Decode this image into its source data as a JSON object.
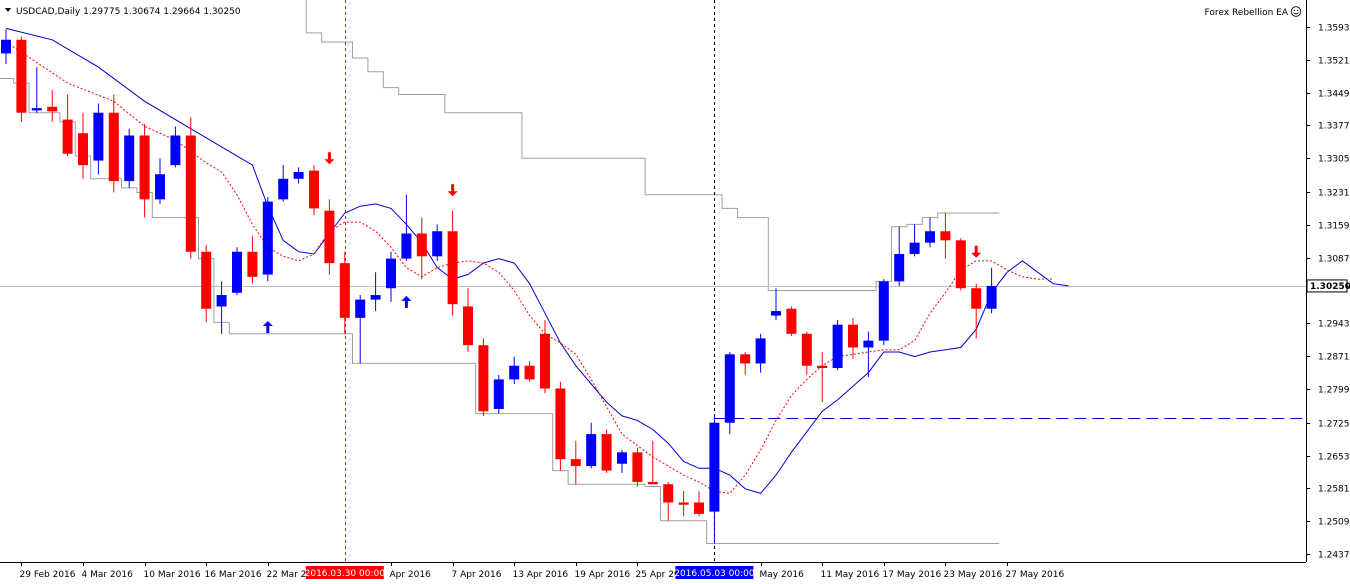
{
  "header": {
    "symbol": "USDCAD,Daily",
    "open": "1.29775",
    "high": "1.30674",
    "low": "1.29664",
    "close": "1.30250",
    "indicator_name": "Forex Rebellion EA",
    "indicator_icon": "smiley-icon"
  },
  "colors": {
    "bull": "#0000ff",
    "bear": "#ff0000",
    "ma_blue": "#0000cc",
    "ma_red": "#ff0000",
    "channel": "#a0a0a0",
    "price_line": "#c0c0c0",
    "level_line": "#0000cc",
    "axis": "#000000",
    "vline_red": "#ff0000",
    "vline_black": "#000000",
    "tag_red": "#ff0000",
    "tag_blue": "#0000ff"
  },
  "chart_data": {
    "type": "candlestick",
    "y_ticks": [
      "1.35930",
      "1.35210",
      "1.34490",
      "1.33770",
      "1.33050",
      "1.32310",
      "1.31590",
      "1.30870",
      "1.30250",
      "1.29430",
      "1.28710",
      "1.27990",
      "1.27250",
      "1.26530",
      "1.25810",
      "1.25090",
      "1.24370"
    ],
    "ylim": [
      1.2415,
      1.3655
    ],
    "current_price": 1.3025,
    "current_price_label": "1.30250",
    "x_ticks": [
      {
        "label": "29 Feb 2016",
        "bar": 1
      },
      {
        "label": "4 Mar 2016",
        "bar": 5
      },
      {
        "label": "10 Mar 2016",
        "bar": 9
      },
      {
        "label": "16 Mar 2016",
        "bar": 13
      },
      {
        "label": "22 Mar 2016",
        "bar": 17
      },
      {
        "label": "Apr 2016",
        "bar": 25
      },
      {
        "label": "7 Apr 2016",
        "bar": 29
      },
      {
        "label": "13 Apr 2016",
        "bar": 33
      },
      {
        "label": "19 Apr 2016",
        "bar": 37
      },
      {
        "label": "25 Apr 2016",
        "bar": 41
      },
      {
        "label": "May 2016",
        "bar": 49
      },
      {
        "label": "11 May 2016",
        "bar": 53
      },
      {
        "label": "17 May 2016",
        "bar": 57
      },
      {
        "label": "23 May 2016",
        "bar": 61
      },
      {
        "label": "27 May 2016",
        "bar": 65
      }
    ],
    "date_tags": [
      {
        "label": "2016.03.30 00:00",
        "bar": 22,
        "color": "red"
      },
      {
        "label": "2016.05.03 00:00",
        "bar": 46,
        "color": "blue"
      }
    ],
    "candles": [
      {
        "o": 1.3535,
        "h": 1.3588,
        "l": 1.3512,
        "c": 1.3565
      },
      {
        "o": 1.3565,
        "h": 1.3572,
        "l": 1.3385,
        "c": 1.3405
      },
      {
        "o": 1.341,
        "h": 1.3505,
        "l": 1.3405,
        "c": 1.3415
      },
      {
        "o": 1.3418,
        "h": 1.3455,
        "l": 1.3385,
        "c": 1.3408
      },
      {
        "o": 1.339,
        "h": 1.3445,
        "l": 1.331,
        "c": 1.3315
      },
      {
        "o": 1.336,
        "h": 1.3405,
        "l": 1.326,
        "c": 1.329
      },
      {
        "o": 1.33,
        "h": 1.3425,
        "l": 1.327,
        "c": 1.3405
      },
      {
        "o": 1.3405,
        "h": 1.3445,
        "l": 1.323,
        "c": 1.3255
      },
      {
        "o": 1.3255,
        "h": 1.337,
        "l": 1.324,
        "c": 1.3355
      },
      {
        "o": 1.3355,
        "h": 1.338,
        "l": 1.3175,
        "c": 1.3215
      },
      {
        "o": 1.3215,
        "h": 1.3305,
        "l": 1.3205,
        "c": 1.327
      },
      {
        "o": 1.329,
        "h": 1.3375,
        "l": 1.3285,
        "c": 1.3355
      },
      {
        "o": 1.3355,
        "h": 1.3395,
        "l": 1.3085,
        "c": 1.31
      },
      {
        "o": 1.31,
        "h": 1.3115,
        "l": 1.2945,
        "c": 1.2975
      },
      {
        "o": 1.298,
        "h": 1.3035,
        "l": 1.292,
        "c": 1.3005
      },
      {
        "o": 1.301,
        "h": 1.311,
        "l": 1.3005,
        "c": 1.31
      },
      {
        "o": 1.31,
        "h": 1.3135,
        "l": 1.303,
        "c": 1.3045
      },
      {
        "o": 1.305,
        "h": 1.322,
        "l": 1.3035,
        "c": 1.321
      },
      {
        "o": 1.3215,
        "h": 1.329,
        "l": 1.321,
        "c": 1.326
      },
      {
        "o": 1.326,
        "h": 1.3285,
        "l": 1.325,
        "c": 1.3275
      },
      {
        "o": 1.3278,
        "h": 1.329,
        "l": 1.318,
        "c": 1.3195
      },
      {
        "o": 1.319,
        "h": 1.3215,
        "l": 1.305,
        "c": 1.3075
      },
      {
        "o": 1.3075,
        "h": 1.31,
        "l": 1.292,
        "c": 1.2955
      },
      {
        "o": 1.2955,
        "h": 1.3005,
        "l": 1.2855,
        "c": 1.2995
      },
      {
        "o": 1.2995,
        "h": 1.3055,
        "l": 1.297,
        "c": 1.3005
      },
      {
        "o": 1.302,
        "h": 1.31,
        "l": 1.299,
        "c": 1.3085
      },
      {
        "o": 1.3085,
        "h": 1.3225,
        "l": 1.308,
        "c": 1.314
      },
      {
        "o": 1.314,
        "h": 1.3175,
        "l": 1.304,
        "c": 1.309
      },
      {
        "o": 1.309,
        "h": 1.316,
        "l": 1.308,
        "c": 1.3145
      },
      {
        "o": 1.3145,
        "h": 1.319,
        "l": 1.296,
        "c": 1.2985
      },
      {
        "o": 1.298,
        "h": 1.302,
        "l": 1.288,
        "c": 1.2895
      },
      {
        "o": 1.2895,
        "h": 1.291,
        "l": 1.274,
        "c": 1.275
      },
      {
        "o": 1.2755,
        "h": 1.283,
        "l": 1.2745,
        "c": 1.282
      },
      {
        "o": 1.282,
        "h": 1.287,
        "l": 1.281,
        "c": 1.285
      },
      {
        "o": 1.285,
        "h": 1.286,
        "l": 1.2815,
        "c": 1.282
      },
      {
        "o": 1.292,
        "h": 1.295,
        "l": 1.279,
        "c": 1.28
      },
      {
        "o": 1.28,
        "h": 1.2815,
        "l": 1.262,
        "c": 1.2645
      },
      {
        "o": 1.2645,
        "h": 1.2685,
        "l": 1.259,
        "c": 1.263
      },
      {
        "o": 1.263,
        "h": 1.2725,
        "l": 1.2625,
        "c": 1.27
      },
      {
        "o": 1.27,
        "h": 1.271,
        "l": 1.2615,
        "c": 1.262
      },
      {
        "o": 1.2635,
        "h": 1.2665,
        "l": 1.2615,
        "c": 1.266
      },
      {
        "o": 1.266,
        "h": 1.267,
        "l": 1.2585,
        "c": 1.2595
      },
      {
        "o": 1.2595,
        "h": 1.2685,
        "l": 1.259,
        "c": 1.259
      },
      {
        "o": 1.259,
        "h": 1.2595,
        "l": 1.251,
        "c": 1.255
      },
      {
        "o": 1.255,
        "h": 1.2575,
        "l": 1.252,
        "c": 1.2545
      },
      {
        "o": 1.255,
        "h": 1.2575,
        "l": 1.252,
        "c": 1.2525
      },
      {
        "o": 1.253,
        "h": 1.274,
        "l": 1.246,
        "c": 1.2725
      },
      {
        "o": 1.2725,
        "h": 1.288,
        "l": 1.27,
        "c": 1.2875
      },
      {
        "o": 1.2875,
        "h": 1.288,
        "l": 1.283,
        "c": 1.2855
      },
      {
        "o": 1.2855,
        "h": 1.292,
        "l": 1.2835,
        "c": 1.291
      },
      {
        "o": 1.296,
        "h": 1.302,
        "l": 1.295,
        "c": 1.297
      },
      {
        "o": 1.2975,
        "h": 1.298,
        "l": 1.2915,
        "c": 1.292
      },
      {
        "o": 1.292,
        "h": 1.2925,
        "l": 1.283,
        "c": 1.285
      },
      {
        "o": 1.285,
        "h": 1.288,
        "l": 1.277,
        "c": 1.2845
      },
      {
        "o": 1.2845,
        "h": 1.295,
        "l": 1.284,
        "c": 1.294
      },
      {
        "o": 1.294,
        "h": 1.2955,
        "l": 1.2865,
        "c": 1.289
      },
      {
        "o": 1.289,
        "h": 1.2925,
        "l": 1.2825,
        "c": 1.2905
      },
      {
        "o": 1.2905,
        "h": 1.304,
        "l": 1.2895,
        "c": 1.3035
      },
      {
        "o": 1.3035,
        "h": 1.3155,
        "l": 1.3025,
        "c": 1.3095
      },
      {
        "o": 1.3095,
        "h": 1.316,
        "l": 1.309,
        "c": 1.312
      },
      {
        "o": 1.312,
        "h": 1.3175,
        "l": 1.311,
        "c": 1.3145
      },
      {
        "o": 1.3145,
        "h": 1.3185,
        "l": 1.3085,
        "c": 1.3125
      },
      {
        "o": 1.3125,
        "h": 1.313,
        "l": 1.3015,
        "c": 1.302
      },
      {
        "o": 1.302,
        "h": 1.303,
        "l": 1.291,
        "c": 1.2975
      },
      {
        "o": 1.2975,
        "h": 1.3065,
        "l": 1.2965,
        "c": 1.3025
      }
    ],
    "ma_blue": [
      [
        0,
        1.359
      ],
      [
        3,
        1.3565
      ],
      [
        6,
        1.3505
      ],
      [
        9,
        1.343
      ],
      [
        12,
        1.337
      ],
      [
        14,
        1.333
      ],
      [
        16,
        1.329
      ],
      [
        17,
        1.32
      ],
      [
        18,
        1.3125
      ],
      [
        19,
        1.31
      ],
      [
        20,
        1.3095
      ],
      [
        21,
        1.314
      ],
      [
        22,
        1.3185
      ],
      [
        23,
        1.32
      ],
      [
        24,
        1.3205
      ],
      [
        25,
        1.3195
      ],
      [
        26,
        1.316
      ],
      [
        27,
        1.312
      ],
      [
        28,
        1.3065
      ],
      [
        29,
        1.304
      ],
      [
        30,
        1.305
      ],
      [
        31,
        1.3075
      ],
      [
        32,
        1.3085
      ],
      [
        33,
        1.3075
      ],
      [
        34,
        1.303
      ],
      [
        35,
        1.2965
      ],
      [
        36,
        1.29
      ],
      [
        37,
        1.285
      ],
      [
        38,
        1.281
      ],
      [
        39,
        1.277
      ],
      [
        40,
        1.274
      ],
      [
        41,
        1.273
      ],
      [
        42,
        1.271
      ],
      [
        43,
        1.268
      ],
      [
        44,
        1.264
      ],
      [
        45,
        1.2625
      ],
      [
        46,
        1.2625
      ],
      [
        47,
        1.261
      ],
      [
        48,
        1.258
      ],
      [
        49,
        1.257
      ],
      [
        50,
        1.261
      ],
      [
        51,
        1.266
      ],
      [
        52,
        1.2705
      ],
      [
        53,
        1.275
      ],
      [
        54,
        1.2775
      ],
      [
        55,
        1.2805
      ],
      [
        56,
        1.2835
      ],
      [
        57,
        1.288
      ],
      [
        58,
        1.288
      ],
      [
        59,
        1.287
      ],
      [
        60,
        1.288
      ],
      [
        61,
        1.2885
      ],
      [
        62,
        1.289
      ],
      [
        63,
        1.293
      ],
      [
        64,
        1.301
      ],
      [
        65,
        1.3055
      ],
      [
        66,
        1.308
      ],
      [
        67,
        1.3055
      ],
      [
        68,
        1.303
      ],
      [
        69,
        1.3025
      ]
    ],
    "ma_red": [
      [
        0,
        1.356
      ],
      [
        4,
        1.347
      ],
      [
        7,
        1.343
      ],
      [
        9,
        1.3375
      ],
      [
        11,
        1.3345
      ],
      [
        12,
        1.332
      ],
      [
        13,
        1.3295
      ],
      [
        14,
        1.3275
      ],
      [
        15,
        1.3225
      ],
      [
        16,
        1.316
      ],
      [
        17,
        1.311
      ],
      [
        18,
        1.309
      ],
      [
        19,
        1.308
      ],
      [
        20,
        1.3095
      ],
      [
        21,
        1.3145
      ],
      [
        22,
        1.3165
      ],
      [
        23,
        1.3165
      ],
      [
        24,
        1.3145
      ],
      [
        25,
        1.311
      ],
      [
        26,
        1.3065
      ],
      [
        27,
        1.3045
      ],
      [
        28,
        1.3065
      ],
      [
        29,
        1.3075
      ],
      [
        30,
        1.308
      ],
      [
        31,
        1.3075
      ],
      [
        32,
        1.3055
      ],
      [
        33,
        1.3015
      ],
      [
        34,
        1.296
      ],
      [
        35,
        1.292
      ],
      [
        36,
        1.29
      ],
      [
        37,
        1.2875
      ],
      [
        38,
        1.282
      ],
      [
        39,
        1.276
      ],
      [
        40,
        1.27
      ],
      [
        41,
        1.2675
      ],
      [
        42,
        1.265
      ],
      [
        43,
        1.263
      ],
      [
        44,
        1.261
      ],
      [
        45,
        1.2595
      ],
      [
        46,
        1.2575
      ],
      [
        47,
        1.257
      ],
      [
        48,
        1.261
      ],
      [
        49,
        1.2665
      ],
      [
        50,
        1.273
      ],
      [
        51,
        1.2785
      ],
      [
        52,
        1.282
      ],
      [
        53,
        1.285
      ],
      [
        54,
        1.287
      ],
      [
        55,
        1.2875
      ],
      [
        56,
        1.288
      ],
      [
        57,
        1.2885
      ],
      [
        58,
        1.2885
      ],
      [
        59,
        1.2905
      ],
      [
        60,
        1.2965
      ],
      [
        61,
        1.301
      ],
      [
        62,
        1.306
      ],
      [
        63,
        1.308
      ],
      [
        64,
        1.308
      ],
      [
        65,
        1.306
      ],
      [
        66,
        1.3045
      ],
      [
        67,
        1.304
      ],
      [
        68,
        1.304
      ]
    ],
    "channel_upper": [
      [
        19,
        1.366
      ],
      [
        20,
        1.358
      ],
      [
        21,
        1.356
      ],
      [
        22,
        1.356
      ],
      [
        23,
        1.3525
      ],
      [
        24,
        1.3495
      ],
      [
        25,
        1.346
      ],
      [
        26,
        1.3445
      ],
      [
        27,
        1.3445
      ],
      [
        28,
        1.3445
      ],
      [
        29,
        1.3405
      ],
      [
        30,
        1.3405
      ],
      [
        31,
        1.3405
      ],
      [
        32,
        1.3405
      ],
      [
        33,
        1.3405
      ],
      [
        34,
        1.3305
      ],
      [
        35,
        1.3305
      ],
      [
        36,
        1.3305
      ],
      [
        37,
        1.3305
      ],
      [
        38,
        1.3305
      ],
      [
        39,
        1.3305
      ],
      [
        40,
        1.3305
      ],
      [
        41,
        1.3305
      ],
      [
        42,
        1.3225
      ],
      [
        43,
        1.3225
      ],
      [
        44,
        1.3225
      ],
      [
        45,
        1.3225
      ],
      [
        46,
        1.3225
      ],
      [
        47,
        1.3195
      ],
      [
        48,
        1.3175
      ],
      [
        49,
        1.3175
      ],
      [
        50,
        1.3015
      ],
      [
        51,
        1.3015
      ],
      [
        52,
        1.3015
      ],
      [
        53,
        1.3015
      ],
      [
        54,
        1.3015
      ],
      [
        55,
        1.3015
      ],
      [
        56,
        1.3015
      ],
      [
        57,
        1.3035
      ],
      [
        58,
        1.3155
      ],
      [
        59,
        1.316
      ],
      [
        60,
        1.3175
      ],
      [
        61,
        1.3185
      ],
      [
        62,
        1.3185
      ],
      [
        63,
        1.3185
      ],
      [
        64,
        1.3185
      ]
    ],
    "channel_lower": [
      [
        0,
        1.348
      ],
      [
        1,
        1.347
      ],
      [
        2,
        1.3405
      ],
      [
        3,
        1.3405
      ],
      [
        4,
        1.3385
      ],
      [
        5,
        1.331
      ],
      [
        6,
        1.326
      ],
      [
        7,
        1.326
      ],
      [
        8,
        1.324
      ],
      [
        9,
        1.323
      ],
      [
        10,
        1.3175
      ],
      [
        11,
        1.3175
      ],
      [
        12,
        1.3175
      ],
      [
        13,
        1.3085
      ],
      [
        14,
        1.2945
      ],
      [
        15,
        1.292
      ],
      [
        16,
        1.292
      ],
      [
        17,
        1.292
      ],
      [
        18,
        1.292
      ],
      [
        19,
        1.292
      ],
      [
        20,
        1.292
      ],
      [
        21,
        1.292
      ],
      [
        22,
        1.292
      ],
      [
        23,
        1.2855
      ],
      [
        24,
        1.2855
      ],
      [
        25,
        1.2855
      ],
      [
        26,
        1.2855
      ],
      [
        27,
        1.2855
      ],
      [
        28,
        1.2855
      ],
      [
        29,
        1.2855
      ],
      [
        30,
        1.2855
      ],
      [
        31,
        1.2745
      ],
      [
        32,
        1.2745
      ],
      [
        33,
        1.2745
      ],
      [
        34,
        1.2745
      ],
      [
        35,
        1.2745
      ],
      [
        36,
        1.262
      ],
      [
        37,
        1.259
      ],
      [
        38,
        1.259
      ],
      [
        39,
        1.259
      ],
      [
        40,
        1.259
      ],
      [
        41,
        1.259
      ],
      [
        42,
        1.2585
      ],
      [
        43,
        1.251
      ],
      [
        44,
        1.251
      ],
      [
        45,
        1.251
      ],
      [
        46,
        1.246
      ],
      [
        47,
        1.246
      ],
      [
        48,
        1.246
      ],
      [
        49,
        1.246
      ],
      [
        50,
        1.246
      ],
      [
        51,
        1.246
      ],
      [
        52,
        1.246
      ],
      [
        53,
        1.246
      ],
      [
        54,
        1.246
      ],
      [
        55,
        1.246
      ],
      [
        56,
        1.246
      ],
      [
        57,
        1.246
      ],
      [
        58,
        1.246
      ],
      [
        59,
        1.246
      ],
      [
        60,
        1.246
      ],
      [
        61,
        1.246
      ],
      [
        62,
        1.246
      ],
      [
        63,
        1.246
      ],
      [
        64,
        1.246
      ]
    ],
    "level_line": {
      "price": 1.2735,
      "from_bar": 46
    },
    "arrows": [
      {
        "bar": 17,
        "price": 1.2935,
        "dir": "up"
      },
      {
        "bar": 21,
        "price": 1.3305,
        "dir": "down"
      },
      {
        "bar": 26,
        "price": 1.299,
        "dir": "up"
      },
      {
        "bar": 29,
        "price": 1.3235,
        "dir": "down"
      },
      {
        "bar": 63,
        "price": 1.31,
        "dir": "down"
      }
    ],
    "vlines": [
      {
        "bar": 22,
        "color": "red"
      },
      {
        "bar": 46,
        "color": "black"
      }
    ]
  }
}
